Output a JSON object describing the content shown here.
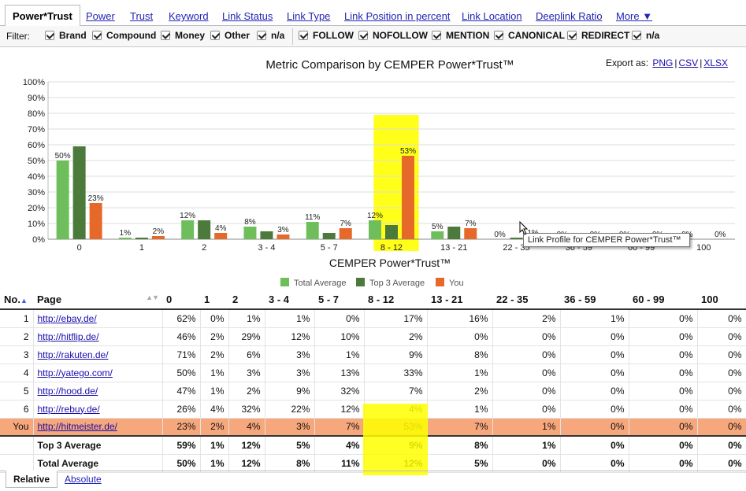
{
  "tabs": [
    "Power*Trust",
    "Power",
    "Trust",
    "Keyword",
    "Link Status",
    "Link Type",
    "Link Position in percent",
    "Link Location",
    "Deeplink Ratio",
    "More ▼"
  ],
  "filter": {
    "label": "Filter:",
    "group1": [
      "Brand",
      "Compound",
      "Money",
      "Other",
      "n/a"
    ],
    "group2": [
      "FOLLOW",
      "NOFOLLOW",
      "MENTION",
      "CANONICAL",
      "REDIRECT",
      "n/a"
    ]
  },
  "chart": {
    "title": "Metric Comparison by CEMPER Power*Trust™",
    "export_label": "Export as:",
    "export_links": [
      "PNG",
      "CSV",
      "XLSX"
    ],
    "tooltip": "Link Profile for CEMPER Power*Trust™"
  },
  "chart_data": {
    "type": "bar",
    "title": "Metric Comparison by CEMPER Power*Trust™",
    "xlabel": "CEMPER Power*Trust™",
    "ylabel": "",
    "ylim": [
      0,
      100
    ],
    "yticks": [
      "0%",
      "10%",
      "20%",
      "30%",
      "40%",
      "50%",
      "60%",
      "70%",
      "80%",
      "90%",
      "100%"
    ],
    "categories": [
      "0",
      "1",
      "2",
      "3 - 4",
      "5 - 7",
      "8 - 12",
      "13 - 21",
      "22 - 35",
      "36 - 59",
      "60 - 99",
      "100"
    ],
    "highlight_category": "8 - 12",
    "legend_position": "bottom",
    "grid": true,
    "series": [
      {
        "name": "Total Average",
        "color": "#6ebf5b",
        "values": [
          50,
          1,
          12,
          8,
          11,
          12,
          5,
          0,
          0,
          0,
          0
        ]
      },
      {
        "name": "Top 3 Average",
        "color": "#4c7a3a",
        "values": [
          59,
          1,
          12,
          5,
          4,
          9,
          8,
          1,
          0,
          0,
          0
        ]
      },
      {
        "name": "You",
        "color": "#e6692a",
        "values": [
          23,
          2,
          4,
          3,
          7,
          53,
          7,
          1,
          0,
          0,
          0
        ]
      }
    ]
  },
  "table": {
    "headers": [
      "No.",
      "Page",
      "0",
      "1",
      "2",
      "3 - 4",
      "5 - 7",
      "8 - 12",
      "13 - 21",
      "22 - 35",
      "36 - 59",
      "60 - 99",
      "100"
    ],
    "rows": [
      {
        "no": "1",
        "page": "http://ebay.de/",
        "vals": [
          "62%",
          "0%",
          "1%",
          "1%",
          "0%",
          "17%",
          "16%",
          "2%",
          "1%",
          "0%",
          "0%"
        ]
      },
      {
        "no": "2",
        "page": "http://hitflip.de/",
        "vals": [
          "46%",
          "2%",
          "29%",
          "12%",
          "10%",
          "2%",
          "0%",
          "0%",
          "0%",
          "0%",
          "0%"
        ]
      },
      {
        "no": "3",
        "page": "http://rakuten.de/",
        "vals": [
          "71%",
          "2%",
          "6%",
          "3%",
          "1%",
          "9%",
          "8%",
          "0%",
          "0%",
          "0%",
          "0%"
        ]
      },
      {
        "no": "4",
        "page": "http://yatego.com/",
        "vals": [
          "50%",
          "1%",
          "3%",
          "3%",
          "13%",
          "33%",
          "1%",
          "0%",
          "0%",
          "0%",
          "0%"
        ]
      },
      {
        "no": "5",
        "page": "http://hood.de/",
        "vals": [
          "47%",
          "1%",
          "2%",
          "9%",
          "32%",
          "7%",
          "2%",
          "0%",
          "0%",
          "0%",
          "0%"
        ]
      },
      {
        "no": "6",
        "page": "http://rebuy.de/",
        "vals": [
          "26%",
          "4%",
          "32%",
          "22%",
          "12%",
          "4%",
          "1%",
          "0%",
          "0%",
          "0%",
          "0%"
        ]
      },
      {
        "no": "You",
        "page": "http://hitmeister.de/",
        "vals": [
          "23%",
          "2%",
          "4%",
          "3%",
          "7%",
          "53%",
          "7%",
          "1%",
          "0%",
          "0%",
          "0%"
        ]
      }
    ],
    "averages": [
      {
        "label": "Top 3 Average",
        "vals": [
          "59%",
          "1%",
          "12%",
          "5%",
          "4%",
          "9%",
          "8%",
          "1%",
          "0%",
          "0%",
          "0%"
        ]
      },
      {
        "label": "Total Average",
        "vals": [
          "50%",
          "1%",
          "12%",
          "8%",
          "11%",
          "12%",
          "5%",
          "0%",
          "0%",
          "0%",
          "0%"
        ]
      }
    ]
  },
  "bottom_tabs": {
    "active": "Relative",
    "other": "Absolute"
  }
}
